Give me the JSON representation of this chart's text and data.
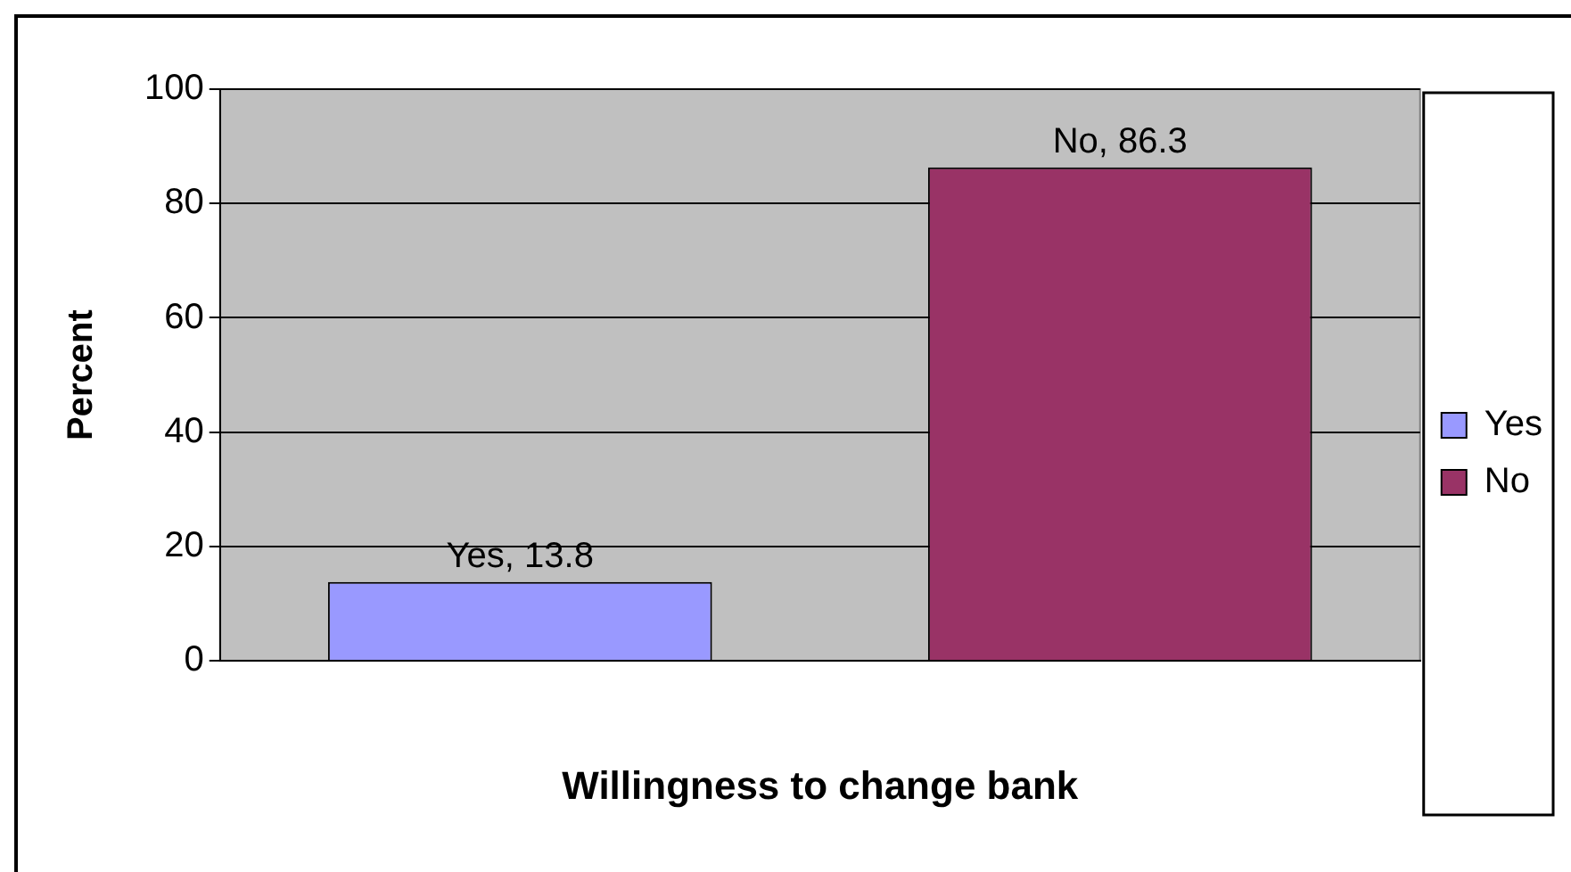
{
  "chart_data": {
    "type": "bar",
    "xlabel": "Willingness to change bank",
    "ylabel": "Percent",
    "categories": [
      null
    ],
    "series": [
      {
        "name": "Yes",
        "color": "#9999ff",
        "values": [
          13.8
        ],
        "value_labels": [
          "Yes, 13.8"
        ]
      },
      {
        "name": "No",
        "color": "#993366",
        "values": [
          86.3
        ],
        "value_labels": [
          "No, 86.3"
        ]
      }
    ],
    "ylim": [
      0,
      100
    ],
    "yticks": [
      0,
      20,
      40,
      60,
      80,
      100
    ],
    "grid": "y",
    "legend": "right"
  }
}
